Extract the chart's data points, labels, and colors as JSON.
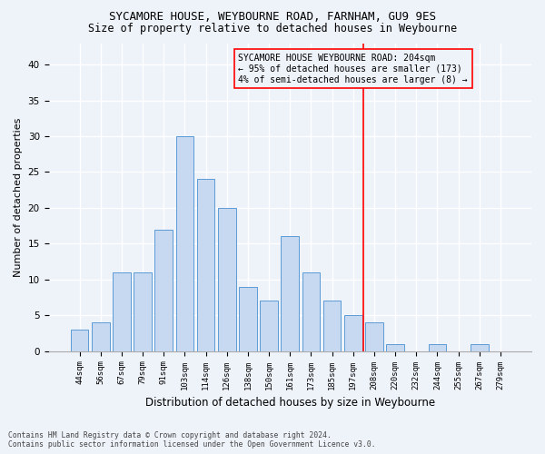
{
  "title_line1": "SYCAMORE HOUSE, WEYBOURNE ROAD, FARNHAM, GU9 9ES",
  "title_line2": "Size of property relative to detached houses in Weybourne",
  "xlabel": "Distribution of detached houses by size in Weybourne",
  "ylabel": "Number of detached properties",
  "footnote1": "Contains HM Land Registry data © Crown copyright and database right 2024.",
  "footnote2": "Contains public sector information licensed under the Open Government Licence v3.0.",
  "bar_labels": [
    "44sqm",
    "56sqm",
    "67sqm",
    "79sqm",
    "91sqm",
    "103sqm",
    "114sqm",
    "126sqm",
    "138sqm",
    "150sqm",
    "161sqm",
    "173sqm",
    "185sqm",
    "197sqm",
    "208sqm",
    "220sqm",
    "232sqm",
    "244sqm",
    "255sqm",
    "267sqm",
    "279sqm"
  ],
  "bar_heights": [
    3,
    4,
    11,
    11,
    17,
    30,
    24,
    20,
    9,
    7,
    16,
    11,
    7,
    5,
    4,
    1,
    0,
    1,
    0,
    1,
    0
  ],
  "bar_color": "#c6d9f1",
  "bar_edgecolor": "#5b9bd5",
  "vline_color": "red",
  "vline_pos": 13.5,
  "annotation_text": "SYCAMORE HOUSE WEYBOURNE ROAD: 204sqm\n← 95% of detached houses are smaller (173)\n4% of semi-detached houses are larger (8) →",
  "ylim": [
    0,
    43
  ],
  "yticks": [
    0,
    5,
    10,
    15,
    20,
    25,
    30,
    35,
    40
  ],
  "background_color": "#eef2f9",
  "grid_color": "white",
  "title_fontsize": 9,
  "subtitle_fontsize": 8.5,
  "ylabel_fontsize": 8,
  "xlabel_fontsize": 8.5,
  "tick_fontsize": 6.5,
  "annotation_fontsize": 7
}
